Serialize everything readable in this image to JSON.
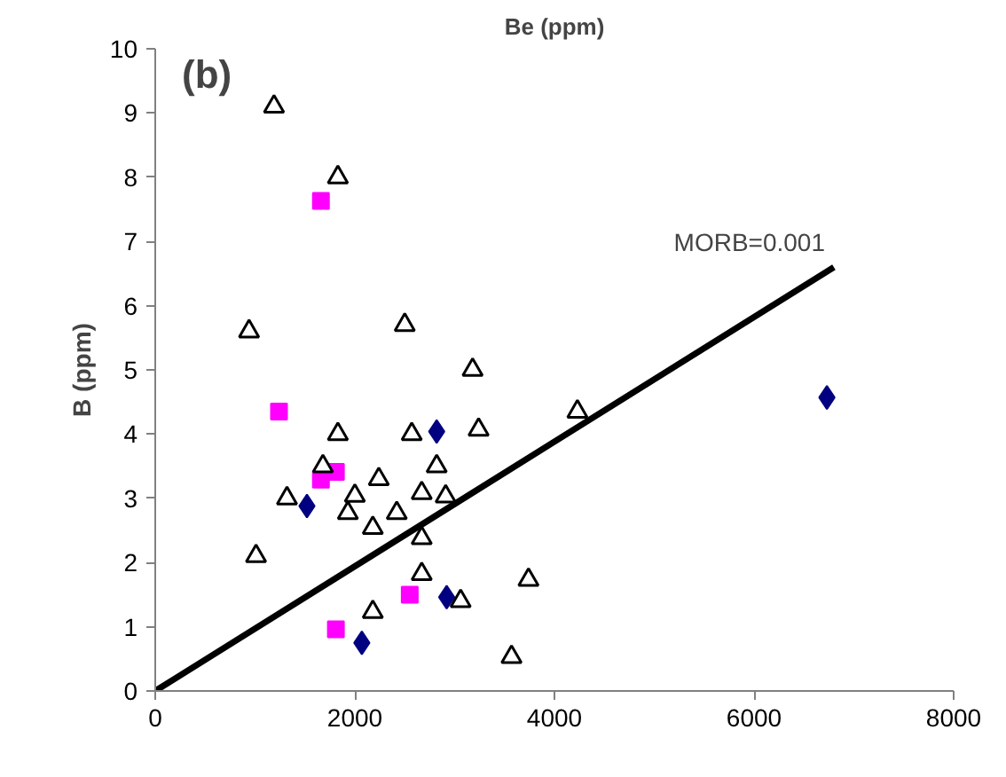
{
  "chart_data": {
    "type": "scatter",
    "xlabel": "Be (ppm)",
    "ylabel": "B (ppm)",
    "xlim": [
      0,
      8000
    ],
    "ylim": [
      0,
      10
    ],
    "xticks": [
      0,
      2000,
      4000,
      6000,
      8000
    ],
    "yticks": [
      0,
      1,
      2,
      3,
      4,
      5,
      6,
      7,
      8,
      9,
      10
    ],
    "grid": false,
    "annotations": [
      "(b)",
      {
        "text": "MORB=0.001",
        "x": 6800,
        "y": 6.6
      }
    ],
    "series": [
      {
        "color": "#000000",
        "marker": "triangle",
        "x": [
          1190,
          1830,
          940,
          2500,
          3180,
          4230,
          1830,
          2570,
          3240,
          1680,
          2820,
          2240,
          1320,
          2000,
          2670,
          2910,
          1930,
          2420,
          2180,
          2670,
          1010,
          2670,
          3740,
          3060,
          2180,
          3570
        ],
        "values": [
          9.1,
          8.0,
          5.6,
          5.7,
          5.0,
          4.35,
          4.0,
          4.0,
          4.07,
          3.5,
          3.5,
          3.3,
          3.0,
          3.04,
          3.08,
          3.03,
          2.77,
          2.77,
          2.54,
          2.38,
          2.1,
          1.82,
          1.73,
          1.4,
          1.23,
          0.53
        ]
      },
      {
        "color": "#ff00ff",
        "marker": "square",
        "x": [
          1660,
          1240,
          1660,
          1810,
          2550,
          1810
        ],
        "values": [
          7.63,
          4.35,
          3.29,
          3.41,
          1.5,
          0.96
        ]
      },
      {
        "color": "#000080",
        "marker": "diamond",
        "x": [
          2820,
          1520,
          2920,
          2070,
          6730
        ],
        "values": [
          4.04,
          2.88,
          1.46,
          0.75,
          4.57
        ]
      },
      {
        "type": "line",
        "color": "#000000",
        "x": [
          0,
          6800
        ],
        "values": [
          0,
          6.6
        ]
      }
    ]
  }
}
